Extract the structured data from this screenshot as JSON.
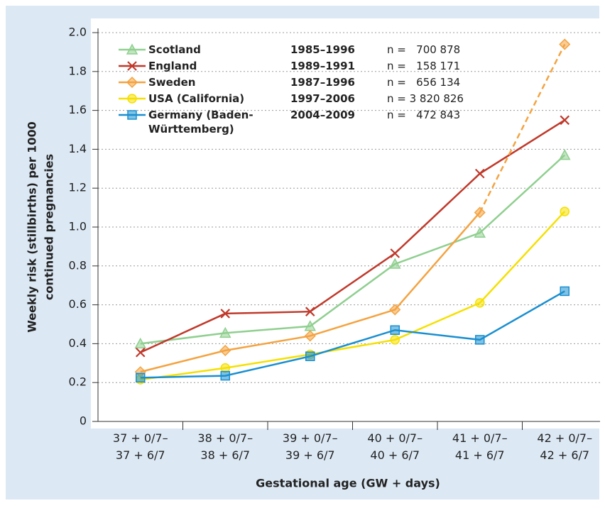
{
  "chart_data": {
    "type": "line",
    "x_label": "Gestational age (GW + days)",
    "y_label": [
      "Weekly risk (stillbirths) per 1000",
      "continued pregnancies"
    ],
    "categories": [
      "37 + 0/7– 37 + 6/7",
      "38 + 0/7– 38 + 6/7",
      "39 + 0/7– 39 + 6/7",
      "40 + 0/7– 40 + 6/7",
      "41 + 0/7– 41 + 6/7",
      "42 + 0/7– 42 + 6/7"
    ],
    "ylim": [
      0,
      2.0
    ],
    "yticks": [
      0,
      0.2,
      0.4,
      0.6,
      0.8,
      {
        "value": 1.0,
        "label": "1.0"
      },
      1.2,
      1.4,
      1.6,
      1.8,
      {
        "value": 2.0,
        "label": "2.0"
      }
    ],
    "grid": true,
    "series": [
      {
        "name": "Scotland",
        "period": "1985–1996",
        "n": "n =   700 878",
        "color": "#8fcf8f",
        "marker": "triangle",
        "values": [
          0.4,
          0.455,
          0.49,
          0.81,
          0.97,
          1.37
        ]
      },
      {
        "name": "England",
        "period": "1989–1991",
        "n": "n =   158 171",
        "color": "#c0392b",
        "marker": "x",
        "values": [
          0.355,
          0.555,
          0.565,
          0.865,
          1.275,
          1.55
        ]
      },
      {
        "name": "Sweden",
        "period": "1987–1996",
        "n": "n =   656 134",
        "color": "#f4a340",
        "marker": "diamond",
        "dashed_last_segment": true,
        "values": [
          0.255,
          0.365,
          0.44,
          0.575,
          1.075,
          1.94
        ]
      },
      {
        "name": "USA (California)",
        "period": "1997–2006",
        "n": "n = 3 820 826",
        "color": "#f5e000",
        "marker": "circle",
        "values": [
          0.215,
          0.275,
          0.345,
          0.42,
          0.61,
          1.08
        ]
      },
      {
        "name": "Germany (Baden-Württemberg)",
        "period": "2004–2009",
        "n": "n =   472 843",
        "color": "#1a8fd0",
        "marker": "square",
        "values": [
          0.225,
          0.235,
          0.335,
          0.47,
          0.42,
          0.67
        ]
      }
    ]
  }
}
